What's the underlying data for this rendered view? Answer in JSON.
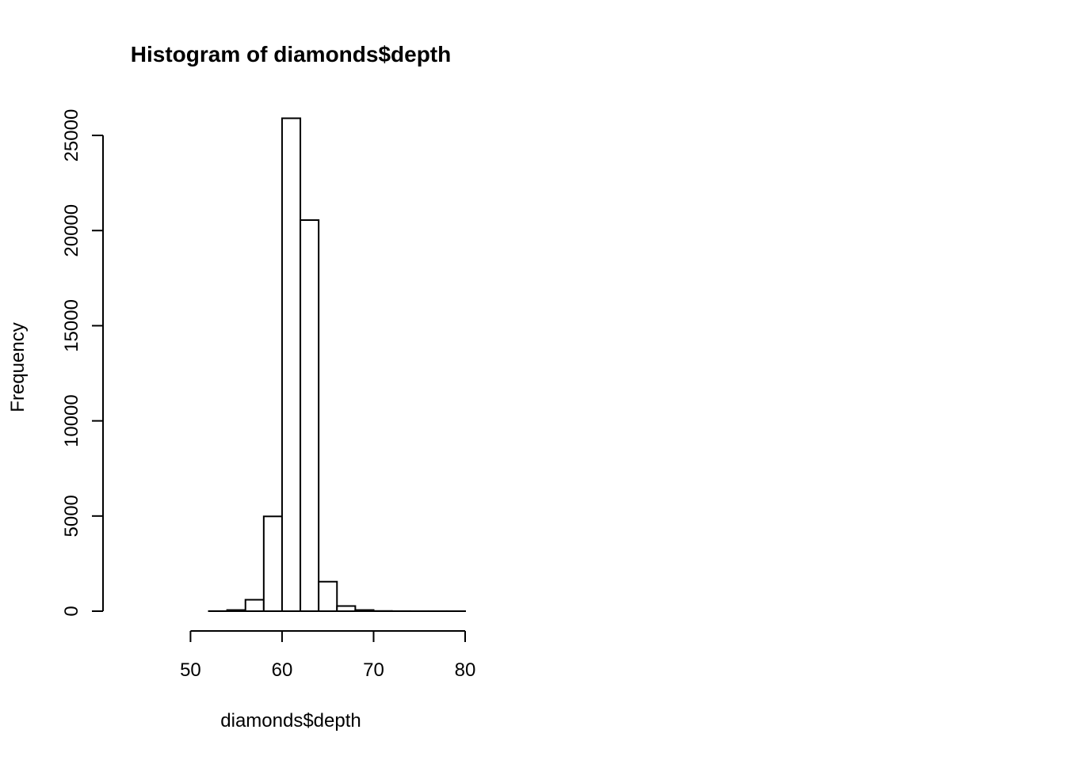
{
  "chart_data": {
    "type": "bar",
    "title": "Histogram of diamonds$depth",
    "xlabel": "diamonds$depth",
    "ylabel": "Frequency",
    "xlim": [
      42,
      80
    ],
    "ylim": [
      0,
      26000
    ],
    "x_ticks": [
      50,
      60,
      70,
      80
    ],
    "y_ticks": [
      0,
      5000,
      10000,
      15000,
      20000,
      25000
    ],
    "bin_width": 2,
    "bins": [
      {
        "from": 42,
        "to": 44,
        "count": 0
      },
      {
        "from": 44,
        "to": 46,
        "count": 0
      },
      {
        "from": 46,
        "to": 48,
        "count": 0
      },
      {
        "from": 48,
        "to": 50,
        "count": 0
      },
      {
        "from": 50,
        "to": 52,
        "count": 0
      },
      {
        "from": 52,
        "to": 54,
        "count": 5
      },
      {
        "from": 54,
        "to": 56,
        "count": 60
      },
      {
        "from": 56,
        "to": 58,
        "count": 600
      },
      {
        "from": 58,
        "to": 60,
        "count": 4980
      },
      {
        "from": 60,
        "to": 62,
        "count": 25900
      },
      {
        "from": 62,
        "to": 64,
        "count": 20550
      },
      {
        "from": 64,
        "to": 66,
        "count": 1550
      },
      {
        "from": 66,
        "to": 68,
        "count": 270
      },
      {
        "from": 68,
        "to": 70,
        "count": 60
      },
      {
        "from": 70,
        "to": 72,
        "count": 10
      },
      {
        "from": 72,
        "to": 74,
        "count": 3
      },
      {
        "from": 74,
        "to": 76,
        "count": 1
      },
      {
        "from": 76,
        "to": 78,
        "count": 1
      },
      {
        "from": 78,
        "to": 80,
        "count": 1
      }
    ],
    "grid": false,
    "legend": "none"
  }
}
